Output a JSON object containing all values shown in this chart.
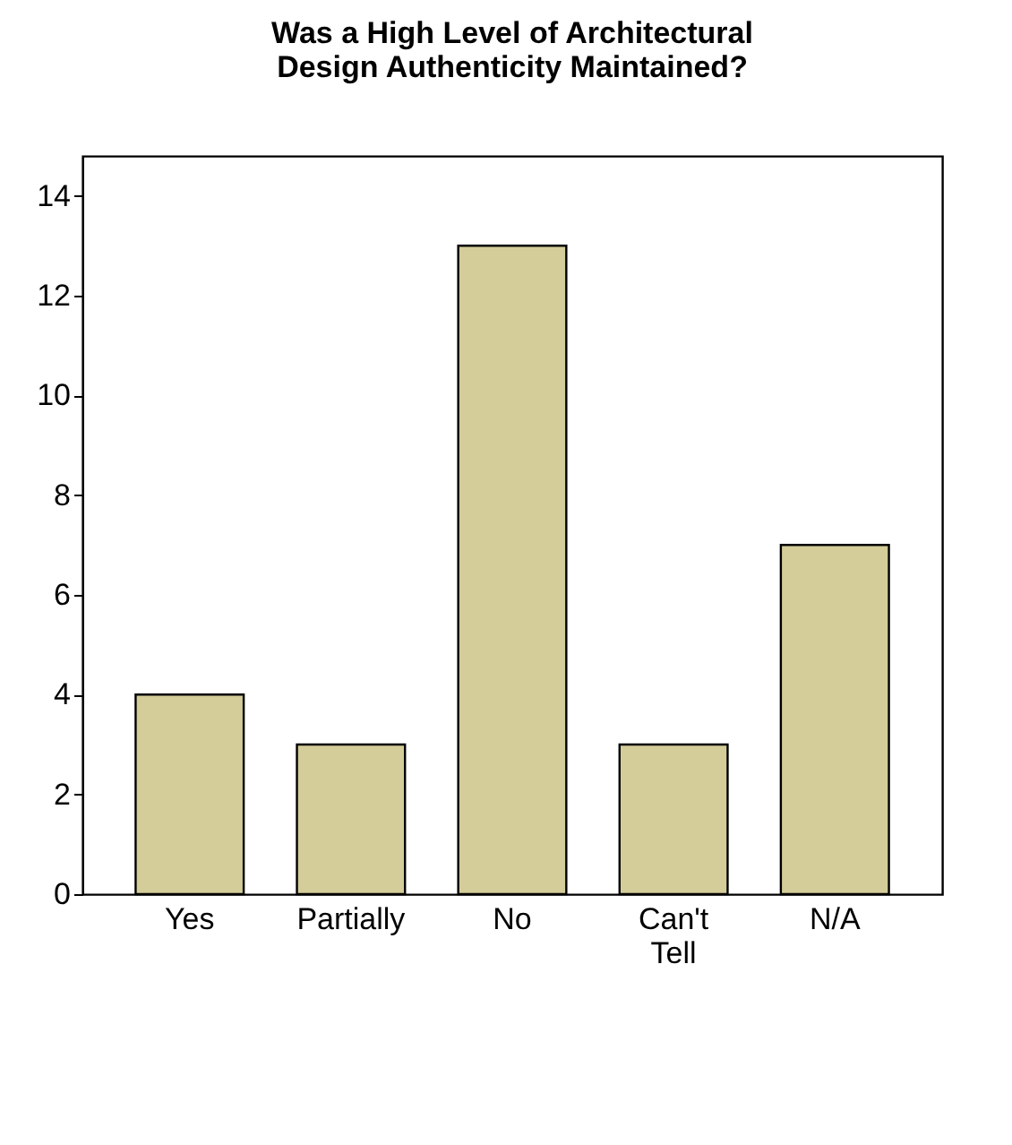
{
  "chart_data": {
    "type": "bar",
    "title": "Was a High Level of Architectural Design Authenticity Maintained?",
    "categories": [
      "Yes",
      "Partially",
      "No",
      "Can't Tell",
      "N/A"
    ],
    "values": [
      4,
      3,
      13,
      3,
      7
    ],
    "color": "#d4cc99",
    "ylim": [
      0,
      14.8
    ],
    "yticks": [
      0,
      2,
      4,
      6,
      8,
      10,
      12,
      14
    ],
    "grid": false
  }
}
